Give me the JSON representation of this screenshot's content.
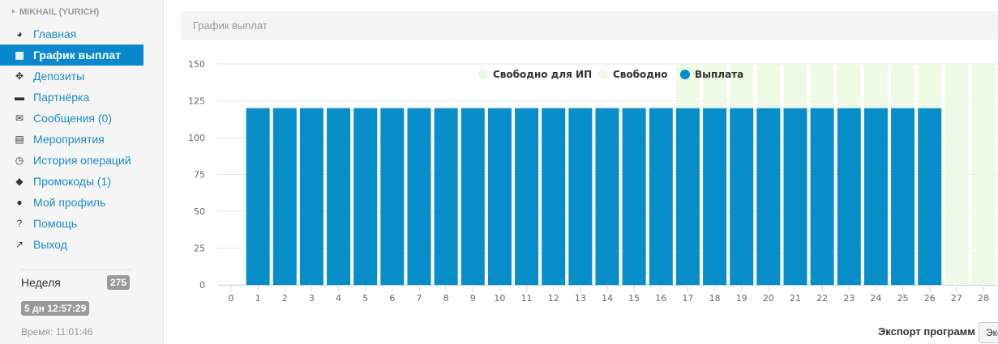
{
  "sidebar": {
    "user": "MIKHAIL (YURICH)",
    "items": [
      {
        "label": "Главная",
        "icon": "dashboard-icon",
        "glyph": "◕"
      },
      {
        "label": "График выплат",
        "icon": "calendar-icon",
        "glyph": "▦",
        "active": true
      },
      {
        "label": "Депозиты",
        "icon": "crosshairs-icon",
        "glyph": "✥"
      },
      {
        "label": "Партнёрка",
        "icon": "briefcase-icon",
        "glyph": "▬"
      },
      {
        "label": "Сообщения (0)",
        "icon": "envelope-icon",
        "glyph": "✉"
      },
      {
        "label": "Мероприятия",
        "icon": "film-icon",
        "glyph": "▤"
      },
      {
        "label": "История операций",
        "icon": "clock-icon",
        "glyph": "◷"
      },
      {
        "label": "Промокоды (1)",
        "icon": "tag-icon",
        "glyph": "◆"
      },
      {
        "label": "Мой профиль",
        "icon": "user-icon",
        "glyph": "●"
      },
      {
        "label": "Помощь",
        "icon": "question-circle-icon",
        "glyph": "?"
      },
      {
        "label": "Выход",
        "icon": "share-square-icon",
        "glyph": "↗"
      }
    ],
    "week_label": "Неделя",
    "week_count": "275",
    "countdown": "5 дн 12:57:29",
    "time": "Время: 11:01:46"
  },
  "panel": {
    "title": "График выплат"
  },
  "export": {
    "label": "Экспорт программ",
    "button": "Экспорт"
  },
  "chart_data": {
    "type": "bar",
    "stacked": true,
    "x": [
      0,
      1,
      2,
      3,
      4,
      5,
      6,
      7,
      8,
      9,
      10,
      11,
      12,
      13,
      14,
      15,
      16,
      17,
      18,
      19,
      20,
      21,
      22,
      23,
      24,
      25,
      26,
      27,
      28
    ],
    "ylim": [
      0,
      150
    ],
    "yticks": [
      0,
      25,
      50,
      75,
      100,
      125,
      150
    ],
    "grid": true,
    "legend_placement": "top-right",
    "series": [
      {
        "name": "Свободно для ИП",
        "color": "#eef8e8",
        "values": [
          0,
          0,
          0,
          0,
          0,
          0,
          0,
          0,
          0,
          0,
          0,
          0,
          0,
          0,
          0,
          0,
          0,
          0,
          0,
          0,
          0,
          0,
          0,
          0,
          0,
          0,
          0,
          0,
          0
        ]
      },
      {
        "name": "Выплата",
        "color": "#078dc8",
        "values": [
          0,
          120,
          120,
          120,
          120,
          120,
          120,
          120,
          120,
          120,
          120,
          120,
          120,
          120,
          120,
          120,
          120,
          120,
          120,
          120,
          120,
          120,
          120,
          120,
          120,
          120,
          120,
          0,
          0
        ]
      },
      {
        "name": "Свободно",
        "color": "#edfbe6",
        "values": [
          0,
          0,
          0,
          0,
          0,
          0,
          0,
          0,
          0,
          0,
          0,
          0,
          0,
          0,
          0,
          0,
          0,
          30,
          30,
          30,
          30,
          30,
          30,
          30,
          30,
          30,
          30,
          150,
          150
        ]
      }
    ]
  }
}
